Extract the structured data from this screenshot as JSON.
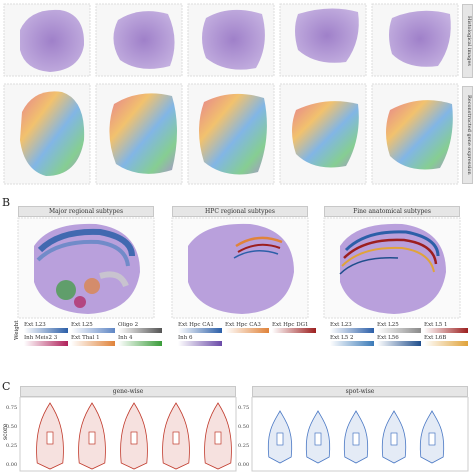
{
  "panels": {
    "A": {
      "letter": "",
      "row_labels": [
        "Histological images",
        "Reconstructed gene expression"
      ]
    },
    "B": {
      "letter": "B",
      "facets": [
        "Major regional subtypes",
        "HPC regional subtypes",
        "Fine anatomical subtypes"
      ],
      "legend_axis_label": "Weight",
      "legends": [
        [
          {
            "label": "Ext L23",
            "color": "#2c5fa8"
          },
          {
            "label": "Ext L25",
            "color": "#5f86c4"
          },
          {
            "label": "Oligo 2",
            "color": "#555555"
          },
          {
            "label": "Inh Meis2 3",
            "color": "#b0205a"
          },
          {
            "label": "Ext Thal 1",
            "color": "#e0833a"
          },
          {
            "label": "Inh 4",
            "color": "#3a9c3a"
          }
        ],
        [
          {
            "label": "Ext Hpc CA1",
            "color": "#2c5fa8"
          },
          {
            "label": "Ext Hpc CA3",
            "color": "#e0833a"
          },
          {
            "label": "Ext Hpc DG1",
            "color": "#9c1f1f"
          },
          {
            "label": "Inh 6",
            "color": "#6a4aa8"
          }
        ],
        [
          {
            "label": "Ext L23",
            "color": "#2c5fa8"
          },
          {
            "label": "Ext L25",
            "color": "#8a8a8a"
          },
          {
            "label": "Ext L5 1",
            "color": "#9c1f1f"
          },
          {
            "label": "Ext L5 2",
            "color": "#3a7ab8"
          },
          {
            "label": "Ext L56",
            "color": "#1f4e8c"
          },
          {
            "label": "Ext L6B",
            "color": "#e0a33a"
          }
        ]
      ]
    },
    "C": {
      "letter": "C",
      "facets": [
        "gene-wise",
        "spot-wise"
      ],
      "ylabel": "score",
      "left_ticks": [
        "0.75",
        "0.50",
        "0.25",
        "0.00"
      ],
      "right_ticks": [
        "0.75",
        "0.50",
        "0.25",
        "0.00"
      ]
    }
  },
  "colors": {
    "tissue": "#b49ad6",
    "gene_violin": "#c0392b",
    "spot_violin": "#4a78c4"
  }
}
